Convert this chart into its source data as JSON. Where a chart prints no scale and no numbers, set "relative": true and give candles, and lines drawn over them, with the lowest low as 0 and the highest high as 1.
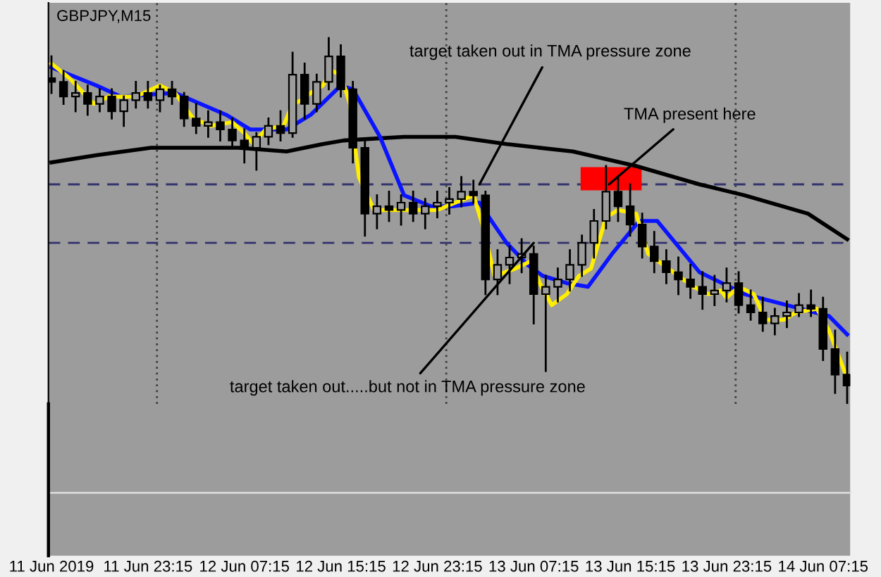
{
  "chart_data": {
    "type": "candlestick",
    "relative": true,
    "color": "#000000",
    "x": [
      "2019-06-11T15:15",
      "2019-06-11T16:15",
      "2019-06-11T17:15",
      "2019-06-11T18:15",
      "2019-06-11T19:15",
      "2019-06-11T20:15",
      "2019-06-11T21:15",
      "2019-06-11T22:15",
      "2019-06-11T23:15",
      "2019-06-12T00:15",
      "2019-06-12T01:15",
      "2019-06-12T02:15",
      "2019-06-12T03:15",
      "2019-06-12T04:15",
      "2019-06-12T05:15",
      "2019-06-12T06:15",
      "2019-06-12T07:15",
      "2019-06-12T08:15",
      "2019-06-12T09:15",
      "2019-06-12T10:15",
      "2019-06-12T11:15",
      "2019-06-12T12:15",
      "2019-06-12T13:15",
      "2019-06-12T14:15",
      "2019-06-12T15:15",
      "2019-06-12T16:15",
      "2019-06-12T17:15",
      "2019-06-12T18:15",
      "2019-06-12T19:15",
      "2019-06-12T20:15",
      "2019-06-12T21:15",
      "2019-06-12T22:15",
      "2019-06-12T23:15",
      "2019-06-13T00:15",
      "2019-06-13T01:15",
      "2019-06-13T02:15",
      "2019-06-13T03:15",
      "2019-06-13T04:15",
      "2019-06-13T05:15",
      "2019-06-13T06:15",
      "2019-06-13T07:15",
      "2019-06-13T08:15",
      "2019-06-13T09:15",
      "2019-06-13T10:15",
      "2019-06-13T11:15",
      "2019-06-13T12:15",
      "2019-06-13T13:15",
      "2019-06-13T14:15",
      "2019-06-13T15:15",
      "2019-06-13T16:15",
      "2019-06-13T17:15",
      "2019-06-13T18:15",
      "2019-06-13T19:15",
      "2019-06-13T20:15",
      "2019-06-13T21:15",
      "2019-06-13T22:15",
      "2019-06-13T23:15",
      "2019-06-14T00:15",
      "2019-06-14T01:15",
      "2019-06-14T02:15",
      "2019-06-14T03:15",
      "2019-06-14T04:15",
      "2019-06-14T05:15",
      "2019-06-14T06:15",
      "2019-06-14T07:15",
      "2019-06-14T08:15",
      "2019-06-14T09:15"
    ],
    "ohlc": [
      [
        0.89,
        0.95,
        0.85,
        0.88
      ],
      [
        0.88,
        0.91,
        0.82,
        0.84
      ],
      [
        0.84,
        0.88,
        0.8,
        0.85
      ],
      [
        0.85,
        0.87,
        0.79,
        0.82
      ],
      [
        0.82,
        0.86,
        0.8,
        0.84
      ],
      [
        0.84,
        0.86,
        0.78,
        0.8
      ],
      [
        0.8,
        0.84,
        0.76,
        0.83
      ],
      [
        0.83,
        0.88,
        0.81,
        0.85
      ],
      [
        0.85,
        0.88,
        0.81,
        0.83
      ],
      [
        0.83,
        0.87,
        0.8,
        0.86
      ],
      [
        0.86,
        0.88,
        0.82,
        0.84
      ],
      [
        0.84,
        0.85,
        0.76,
        0.78
      ],
      [
        0.78,
        0.82,
        0.74,
        0.76
      ],
      [
        0.76,
        0.8,
        0.73,
        0.77
      ],
      [
        0.77,
        0.8,
        0.72,
        0.75
      ],
      [
        0.75,
        0.78,
        0.7,
        0.72
      ],
      [
        0.72,
        0.75,
        0.66,
        0.7
      ],
      [
        0.7,
        0.74,
        0.64,
        0.73
      ],
      [
        0.73,
        0.78,
        0.71,
        0.76
      ],
      [
        0.76,
        0.8,
        0.72,
        0.74
      ],
      [
        0.74,
        0.96,
        0.73,
        0.9
      ],
      [
        0.9,
        0.93,
        0.78,
        0.82
      ],
      [
        0.82,
        0.9,
        0.8,
        0.88
      ],
      [
        0.88,
        1.0,
        0.86,
        0.95
      ],
      [
        0.95,
        0.98,
        0.84,
        0.86
      ],
      [
        0.86,
        0.88,
        0.66,
        0.7
      ],
      [
        0.7,
        0.72,
        0.46,
        0.52
      ],
      [
        0.52,
        0.57,
        0.48,
        0.54
      ],
      [
        0.54,
        0.58,
        0.5,
        0.53
      ],
      [
        0.53,
        0.57,
        0.49,
        0.55
      ],
      [
        0.55,
        0.58,
        0.5,
        0.52
      ],
      [
        0.52,
        0.56,
        0.48,
        0.54
      ],
      [
        0.54,
        0.58,
        0.51,
        0.55
      ],
      [
        0.55,
        0.59,
        0.52,
        0.56
      ],
      [
        0.56,
        0.62,
        0.54,
        0.58
      ],
      [
        0.58,
        0.61,
        0.55,
        0.57
      ],
      [
        0.57,
        0.58,
        0.3,
        0.34
      ],
      [
        0.34,
        0.42,
        0.3,
        0.38
      ],
      [
        0.38,
        0.43,
        0.33,
        0.4
      ],
      [
        0.4,
        0.45,
        0.36,
        0.41
      ],
      [
        0.41,
        0.43,
        0.22,
        0.3
      ],
      [
        0.3,
        0.35,
        0.09,
        0.32
      ],
      [
        0.32,
        0.37,
        0.28,
        0.34
      ],
      [
        0.34,
        0.42,
        0.31,
        0.38
      ],
      [
        0.38,
        0.46,
        0.35,
        0.44
      ],
      [
        0.44,
        0.53,
        0.4,
        0.5
      ],
      [
        0.5,
        0.65,
        0.48,
        0.58
      ],
      [
        0.58,
        0.62,
        0.5,
        0.54
      ],
      [
        0.54,
        0.6,
        0.46,
        0.49
      ],
      [
        0.49,
        0.52,
        0.4,
        0.43
      ],
      [
        0.43,
        0.47,
        0.36,
        0.39
      ],
      [
        0.39,
        0.42,
        0.33,
        0.36
      ],
      [
        0.36,
        0.4,
        0.3,
        0.34
      ],
      [
        0.34,
        0.38,
        0.29,
        0.32
      ],
      [
        0.32,
        0.36,
        0.26,
        0.3
      ],
      [
        0.3,
        0.35,
        0.27,
        0.31
      ],
      [
        0.31,
        0.37,
        0.28,
        0.33
      ],
      [
        0.33,
        0.36,
        0.25,
        0.27
      ],
      [
        0.27,
        0.31,
        0.23,
        0.25
      ],
      [
        0.25,
        0.29,
        0.2,
        0.22
      ],
      [
        0.22,
        0.26,
        0.19,
        0.24
      ],
      [
        0.24,
        0.28,
        0.21,
        0.25
      ],
      [
        0.25,
        0.3,
        0.24,
        0.27
      ],
      [
        0.27,
        0.31,
        0.24,
        0.26
      ],
      [
        0.26,
        0.29,
        0.12,
        0.15
      ],
      [
        0.15,
        0.2,
        0.03,
        0.08
      ],
      [
        0.08,
        0.14,
        0.0,
        0.05
      ]
    ],
    "series": [
      {
        "type": "line",
        "color": "#000000",
        "x": [
          "2019-06-11T15:15",
          "2019-06-11T19:00",
          "2019-06-11T23:30",
          "2019-06-12T06:45",
          "2019-06-12T10:45",
          "2019-06-12T13:45",
          "2019-06-12T15:30",
          "2019-06-12T20:30",
          "2019-06-13T00:45",
          "2019-06-13T05:00",
          "2019-06-13T10:30",
          "2019-06-13T15:45",
          "2019-06-13T21:00",
          "2019-06-14T00:45",
          "2019-06-14T06:00",
          "2019-06-14T09:15"
        ],
        "values": [
          0.66,
          0.68,
          0.7,
          0.7,
          0.69,
          0.71,
          0.72,
          0.73,
          0.73,
          0.71,
          0.69,
          0.65,
          0.6,
          0.57,
          0.52,
          0.45
        ]
      },
      {
        "type": "line",
        "color": "#0a14ff",
        "x": [
          "2019-06-11T15:15",
          "2019-06-11T16:45",
          "2019-06-11T19:00",
          "2019-06-11T21:00",
          "2019-06-12T01:30",
          "2019-06-12T05:45",
          "2019-06-12T07:45",
          "2019-06-12T10:45",
          "2019-06-12T12:45",
          "2019-06-12T15:15",
          "2019-06-12T16:15",
          "2019-06-12T18:30",
          "2019-06-12T20:30",
          "2019-06-12T22:45",
          "2019-06-13T00:30",
          "2019-06-13T02:45",
          "2019-06-13T03:45",
          "2019-06-13T05:00",
          "2019-06-13T06:45",
          "2019-06-13T08:00",
          "2019-06-13T10:00",
          "2019-06-13T11:45",
          "2019-06-13T13:45",
          "2019-06-13T16:00",
          "2019-06-13T17:30",
          "2019-06-13T19:30",
          "2019-06-13T21:00",
          "2019-06-14T00:45",
          "2019-06-14T04:15",
          "2019-06-14T07:45",
          "2019-06-14T09:15"
        ],
        "values": [
          0.92,
          0.9,
          0.87,
          0.84,
          0.85,
          0.79,
          0.75,
          0.75,
          0.79,
          0.87,
          0.86,
          0.73,
          0.57,
          0.54,
          0.54,
          0.55,
          0.5,
          0.44,
          0.38,
          0.35,
          0.33,
          0.32,
          0.41,
          0.5,
          0.5,
          0.42,
          0.36,
          0.3,
          0.27,
          0.24,
          0.19
        ]
      },
      {
        "type": "line",
        "color": "#ffee00",
        "x": [
          "2019-06-11T15:15",
          "2019-06-11T16:45",
          "2019-06-11T18:45",
          "2019-06-11T20:00",
          "2019-06-11T22:15",
          "2019-06-12T00:15",
          "2019-06-12T01:30",
          "2019-06-12T03:00",
          "2019-06-12T04:30",
          "2019-06-12T06:15",
          "2019-06-12T07:15",
          "2019-06-12T08:00",
          "2019-06-12T09:00",
          "2019-06-12T10:30",
          "2019-06-12T11:15",
          "2019-06-12T12:00",
          "2019-06-12T12:45",
          "2019-06-12T13:45",
          "2019-06-12T14:30",
          "2019-06-12T15:15",
          "2019-06-12T16:00",
          "2019-06-12T16:45",
          "2019-06-12T18:00",
          "2019-06-12T19:30",
          "2019-06-12T21:45",
          "2019-06-12T23:15",
          "2019-06-13T00:45",
          "2019-06-13T02:15",
          "2019-06-13T03:00",
          "2019-06-13T04:00",
          "2019-06-13T05:45",
          "2019-06-13T07:00",
          "2019-06-13T07:45",
          "2019-06-13T08:45",
          "2019-06-13T10:00",
          "2019-06-13T11:00",
          "2019-06-13T12:00",
          "2019-06-13T13:15",
          "2019-06-13T14:15",
          "2019-06-13T15:45",
          "2019-06-13T16:45",
          "2019-06-13T18:00",
          "2019-06-13T19:15",
          "2019-06-13T20:30",
          "2019-06-13T21:45",
          "2019-06-13T22:45",
          "2019-06-13T23:15",
          "2019-06-14T00:15",
          "2019-06-14T01:30",
          "2019-06-14T02:30",
          "2019-06-14T04:00",
          "2019-06-14T05:00",
          "2019-06-14T06:45",
          "2019-06-14T07:45",
          "2019-06-14T09:15"
        ],
        "values": [
          0.93,
          0.89,
          0.82,
          0.84,
          0.84,
          0.87,
          0.85,
          0.78,
          0.76,
          0.77,
          0.74,
          0.71,
          0.75,
          0.76,
          0.82,
          0.83,
          0.85,
          0.87,
          0.91,
          0.9,
          0.82,
          0.62,
          0.53,
          0.53,
          0.53,
          0.53,
          0.55,
          0.57,
          0.49,
          0.35,
          0.37,
          0.39,
          0.33,
          0.27,
          0.3,
          0.35,
          0.37,
          0.51,
          0.53,
          0.52,
          0.41,
          0.38,
          0.35,
          0.32,
          0.3,
          0.31,
          0.29,
          0.32,
          0.3,
          0.23,
          0.23,
          0.25,
          0.26,
          0.2,
          0.07
        ]
      }
    ],
    "xlim": [
      "2019-06-11T15:00",
      "2019-06-14T09:30"
    ],
    "xticks": [
      {
        "value": "2019-06-11T15:15",
        "label": "11 Jun 2019"
      },
      {
        "value": "2019-06-11T23:15",
        "label": "11 Jun 23:15"
      },
      {
        "value": "2019-06-12T07:15",
        "label": "12 Jun 07:15"
      },
      {
        "value": "2019-06-12T15:15",
        "label": "12 Jun 15:15"
      },
      {
        "value": "2019-06-12T23:15",
        "label": "12 Jun 23:15"
      },
      {
        "value": "2019-06-13T07:15",
        "label": "13 Jun 07:15"
      },
      {
        "value": "2019-06-13T15:15",
        "label": "13 Jun 15:15"
      },
      {
        "value": "2019-06-13T23:15",
        "label": "13 Jun 23:15"
      },
      {
        "value": "2019-06-14T07:15",
        "label": "14 Jun 07:15"
      }
    ],
    "tick_labels": "x",
    "ref_lines": [
      {
        "axis": "y",
        "value": 0.6,
        "color": "#33336e",
        "line_style": "dashed"
      },
      {
        "axis": "y",
        "value": 0.44,
        "color": "#33336e",
        "line_style": "dashed"
      },
      {
        "axis": "x",
        "value": "2019-06-12T00:00",
        "color": "#404040",
        "line_style": "dotted"
      },
      {
        "axis": "x",
        "value": "2019-06-13T00:00",
        "color": "#404040",
        "line_style": "dotted"
      },
      {
        "axis": "x",
        "value": "2019-06-14T00:00",
        "color": "#404040",
        "line_style": "dotted"
      }
    ],
    "annotations": [
      "GBPJPY,M15",
      {
        "text": "target taken out in TMA pressure zone",
        "x": "2019-06-13T02:45",
        "y": 0.6
      },
      {
        "text": "target taken out.....but not in TMA pressure zone",
        "x": "2019-06-13T07:15",
        "y": 0.44
      },
      {
        "text": "TMA present here",
        "x": "2019-06-13T13:30",
        "y": 0.6
      }
    ]
  }
}
